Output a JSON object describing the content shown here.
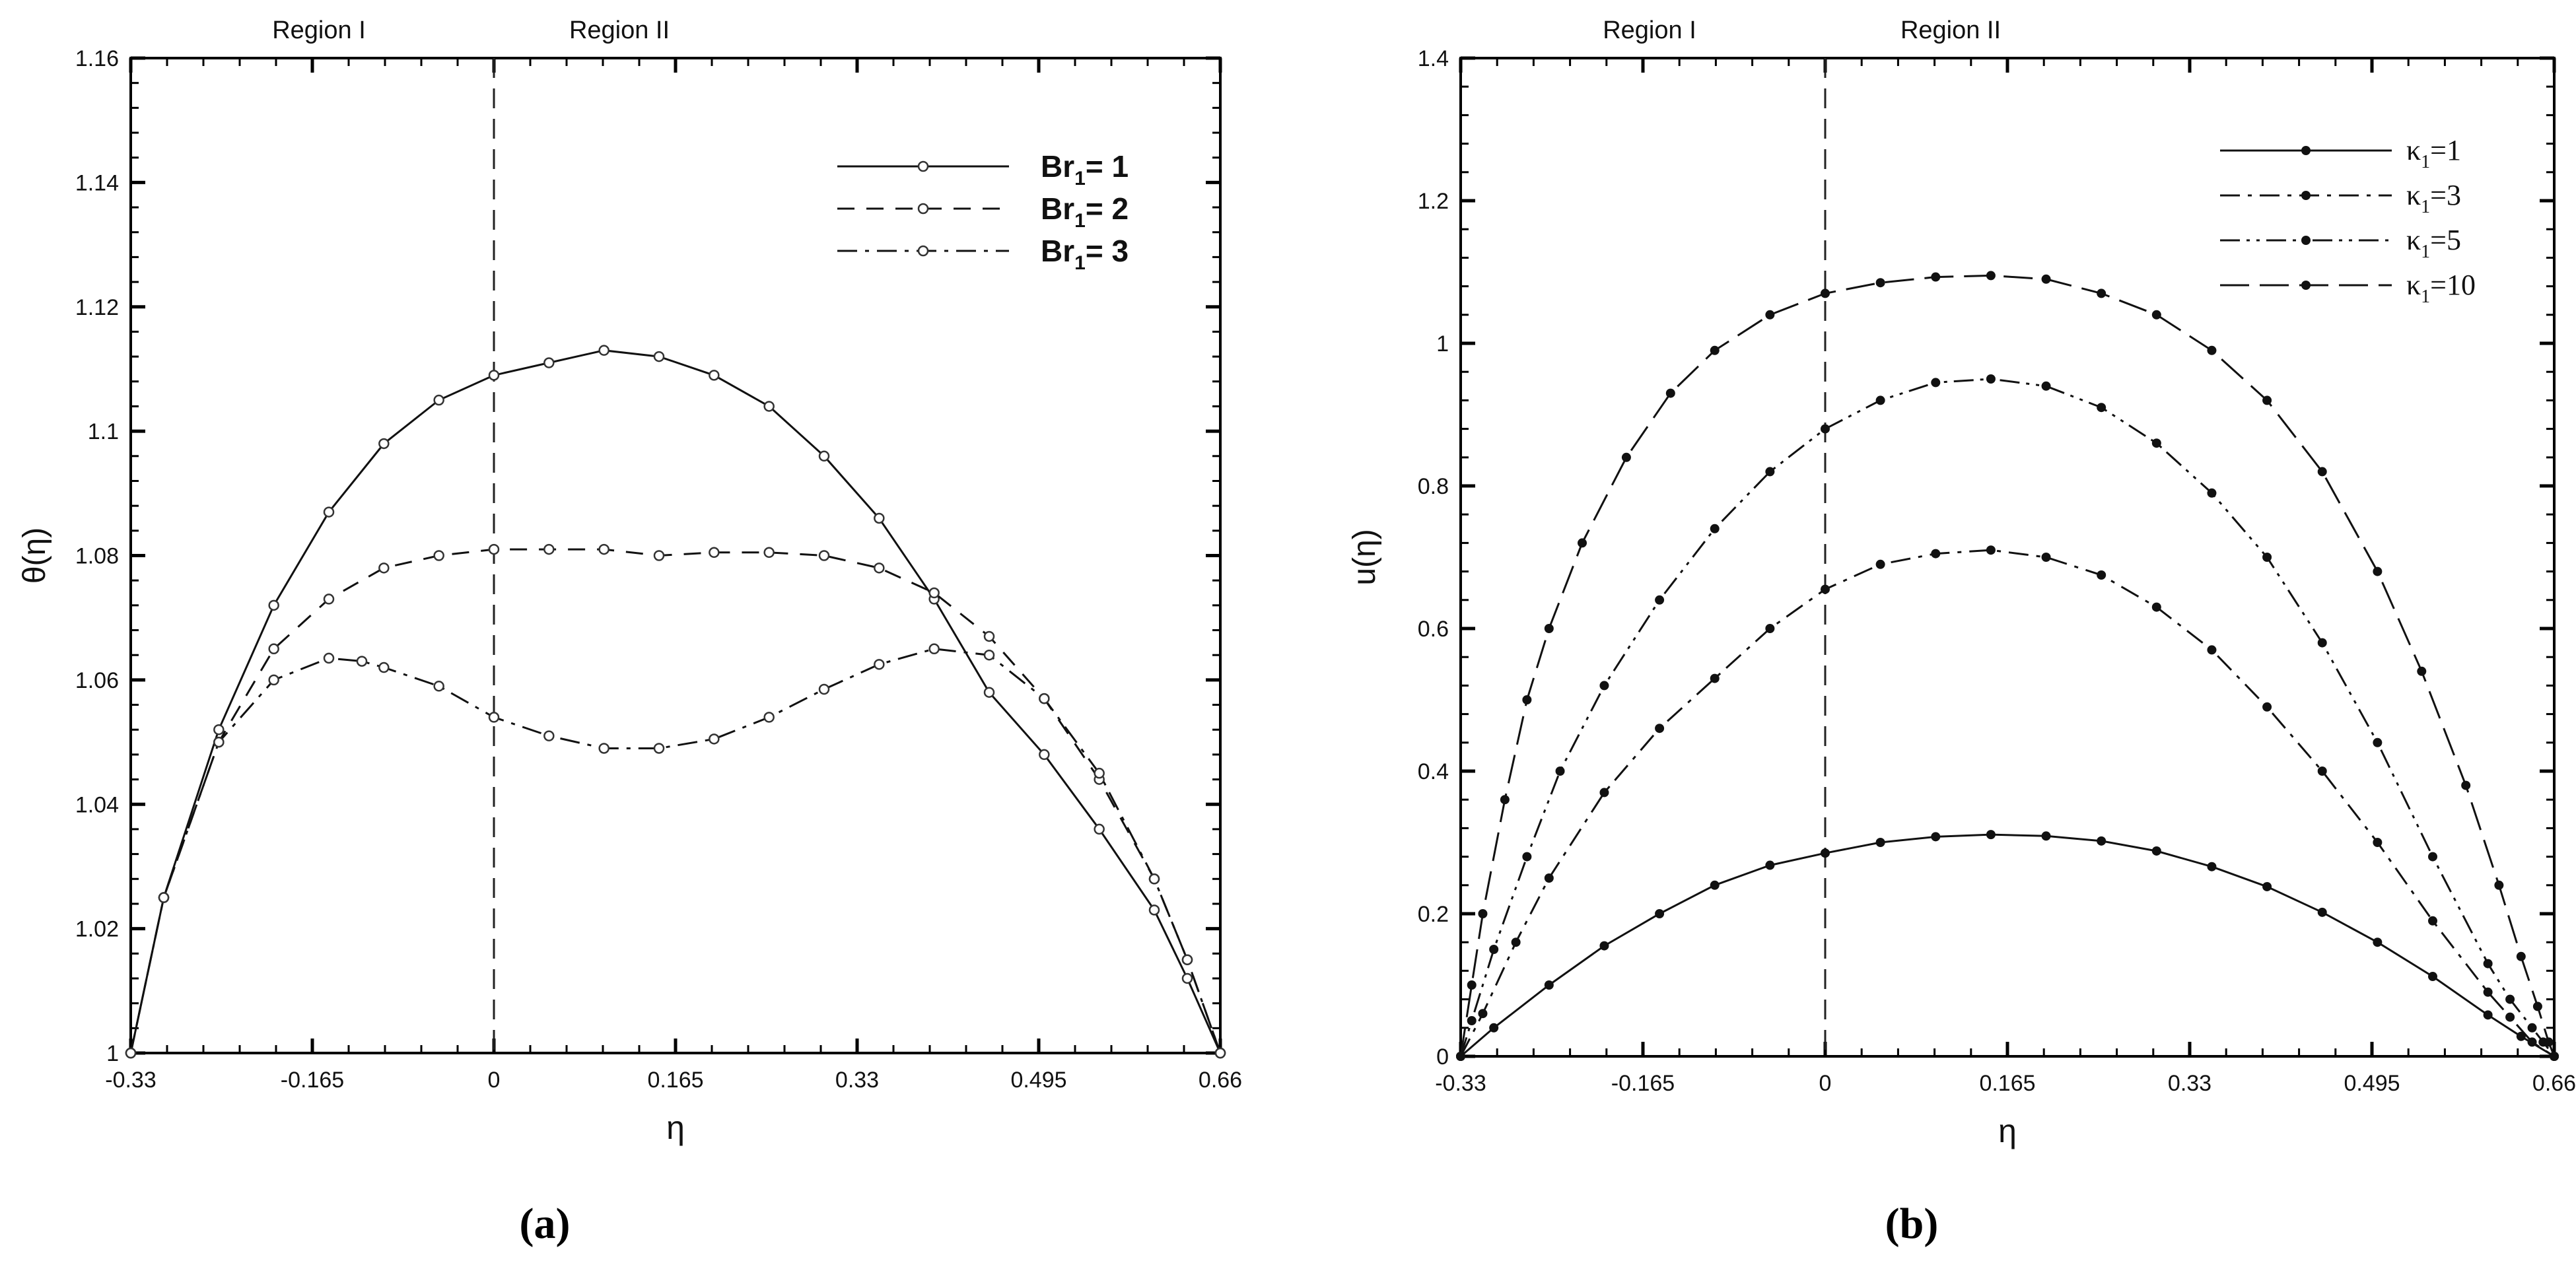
{
  "chart_data": [
    {
      "type": "line",
      "panel_label": "(a)",
      "xlabel": "η",
      "ylabel": "θ(η)",
      "xlim": [
        -0.33,
        0.66
      ],
      "ylim": [
        1.0,
        1.16
      ],
      "xticks": [
        -0.33,
        -0.165,
        0,
        0.165,
        0.33,
        0.495,
        0.66
      ],
      "xtick_labels": [
        "-0.33",
        "-0.165",
        "0",
        "0.165",
        "0.33",
        "0.495",
        "0.66"
      ],
      "yticks": [
        1.0,
        1.02,
        1.04,
        1.06,
        1.08,
        1.1,
        1.12,
        1.14,
        1.16
      ],
      "ytick_labels": [
        "1",
        "1.02",
        "1.04",
        "1.06",
        "1.08",
        "1.1",
        "1.12",
        "1.14",
        "1.16"
      ],
      "regions": [
        "Region I",
        "Region II"
      ],
      "interface_x": 0,
      "marker": "open-circle",
      "legend_position": "top-right",
      "series": [
        {
          "name": "Br",
          "subscript": "1",
          "suffix": "= 1",
          "dash": "solid",
          "x": [
            -0.33,
            -0.3,
            -0.25,
            -0.2,
            -0.15,
            -0.1,
            -0.05,
            0,
            0.05,
            0.1,
            0.15,
            0.2,
            0.25,
            0.3,
            0.35,
            0.4,
            0.45,
            0.5,
            0.55,
            0.6,
            0.63,
            0.66
          ],
          "y": [
            1.0,
            1.025,
            1.052,
            1.072,
            1.087,
            1.098,
            1.105,
            1.109,
            1.111,
            1.113,
            1.112,
            1.109,
            1.104,
            1.096,
            1.086,
            1.073,
            1.058,
            1.048,
            1.036,
            1.023,
            1.012,
            1.0
          ]
        },
        {
          "name": "Br",
          "subscript": "1",
          "suffix": "= 2",
          "dash": "dash",
          "x": [
            -0.33,
            -0.3,
            -0.25,
            -0.2,
            -0.15,
            -0.1,
            -0.05,
            0,
            0.05,
            0.1,
            0.15,
            0.2,
            0.25,
            0.3,
            0.35,
            0.4,
            0.45,
            0.5,
            0.55,
            0.6,
            0.63,
            0.66
          ],
          "y": [
            1.0,
            1.025,
            1.05,
            1.065,
            1.073,
            1.078,
            1.08,
            1.081,
            1.081,
            1.081,
            1.08,
            1.0805,
            1.0805,
            1.08,
            1.078,
            1.074,
            1.067,
            1.057,
            1.044,
            1.028,
            1.015,
            1.0
          ]
        },
        {
          "name": "Br",
          "subscript": "1",
          "suffix": "= 3",
          "dash": "dashdot",
          "x": [
            -0.33,
            -0.3,
            -0.25,
            -0.2,
            -0.15,
            -0.12,
            -0.1,
            -0.05,
            0,
            0.05,
            0.1,
            0.15,
            0.2,
            0.25,
            0.3,
            0.35,
            0.4,
            0.45,
            0.5,
            0.55,
            0.6,
            0.63,
            0.66
          ],
          "y": [
            1.0,
            1.025,
            1.05,
            1.06,
            1.0635,
            1.063,
            1.062,
            1.059,
            1.054,
            1.051,
            1.049,
            1.049,
            1.0505,
            1.054,
            1.0585,
            1.0625,
            1.065,
            1.064,
            1.057,
            1.045,
            1.028,
            1.015,
            1.0
          ]
        }
      ]
    },
    {
      "type": "line",
      "panel_label": "(b)",
      "xlabel": "η",
      "ylabel": "u(η)",
      "xlim": [
        -0.33,
        0.66
      ],
      "ylim": [
        0,
        1.4
      ],
      "xticks": [
        -0.33,
        -0.165,
        0,
        0.165,
        0.33,
        0.495,
        0.66
      ],
      "xtick_labels": [
        "-0.33",
        "-0.165",
        "0",
        "0.165",
        "0.33",
        "0.495",
        "0.66"
      ],
      "yticks": [
        0,
        0.2,
        0.4,
        0.6,
        0.8,
        1.0,
        1.2,
        1.4
      ],
      "ytick_labels": [
        "0",
        "0.2",
        "0.4",
        "0.6",
        "0.8",
        "1",
        "1.2",
        "1.4"
      ],
      "regions": [
        "Region I",
        "Region II"
      ],
      "interface_x": 0,
      "marker": "filled-dot",
      "legend_position": "top-right",
      "series": [
        {
          "name": "κ",
          "subscript": "1",
          "suffix": "=1",
          "dash": "solid",
          "x": [
            -0.33,
            -0.3,
            -0.25,
            -0.2,
            -0.15,
            -0.1,
            -0.05,
            0,
            0.05,
            0.1,
            0.15,
            0.2,
            0.25,
            0.3,
            0.35,
            0.4,
            0.45,
            0.5,
            0.55,
            0.6,
            0.63,
            0.66
          ],
          "y": [
            0.0,
            0.04,
            0.1,
            0.155,
            0.2,
            0.24,
            0.268,
            0.285,
            0.3,
            0.308,
            0.311,
            0.309,
            0.302,
            0.288,
            0.266,
            0.238,
            0.202,
            0.16,
            0.112,
            0.058,
            0.028,
            0.0
          ]
        },
        {
          "name": "κ",
          "subscript": "1",
          "suffix": "=3",
          "dash": "dashdot",
          "x": [
            -0.33,
            -0.31,
            -0.28,
            -0.25,
            -0.2,
            -0.15,
            -0.1,
            -0.05,
            0,
            0.05,
            0.1,
            0.15,
            0.2,
            0.25,
            0.3,
            0.35,
            0.4,
            0.45,
            0.5,
            0.55,
            0.6,
            0.62,
            0.64,
            0.66
          ],
          "y": [
            0.0,
            0.06,
            0.16,
            0.25,
            0.37,
            0.46,
            0.53,
            0.6,
            0.655,
            0.69,
            0.705,
            0.71,
            0.7,
            0.675,
            0.63,
            0.57,
            0.49,
            0.4,
            0.3,
            0.19,
            0.09,
            0.055,
            0.02,
            0.0
          ]
        },
        {
          "name": "κ",
          "subscript": "1",
          "suffix": "=5",
          "dash": "dashdotdot",
          "x": [
            -0.33,
            -0.32,
            -0.3,
            -0.27,
            -0.24,
            -0.2,
            -0.15,
            -0.1,
            -0.05,
            0,
            0.05,
            0.1,
            0.15,
            0.2,
            0.25,
            0.3,
            0.35,
            0.4,
            0.45,
            0.5,
            0.55,
            0.6,
            0.62,
            0.64,
            0.65,
            0.66
          ],
          "y": [
            0.0,
            0.05,
            0.15,
            0.28,
            0.4,
            0.52,
            0.64,
            0.74,
            0.82,
            0.88,
            0.92,
            0.945,
            0.95,
            0.94,
            0.91,
            0.86,
            0.79,
            0.7,
            0.58,
            0.44,
            0.28,
            0.13,
            0.08,
            0.04,
            0.02,
            0.0
          ]
        },
        {
          "name": "κ",
          "subscript": "1",
          "suffix": "=10",
          "dash": "longdash",
          "x": [
            -0.33,
            -0.32,
            -0.31,
            -0.29,
            -0.27,
            -0.25,
            -0.22,
            -0.18,
            -0.14,
            -0.1,
            -0.05,
            0,
            0.05,
            0.1,
            0.15,
            0.2,
            0.25,
            0.3,
            0.35,
            0.4,
            0.45,
            0.5,
            0.54,
            0.58,
            0.61,
            0.63,
            0.645,
            0.655,
            0.66
          ],
          "y": [
            0.0,
            0.1,
            0.2,
            0.36,
            0.5,
            0.6,
            0.72,
            0.84,
            0.93,
            0.99,
            1.04,
            1.07,
            1.085,
            1.093,
            1.095,
            1.09,
            1.07,
            1.04,
            0.99,
            0.92,
            0.82,
            0.68,
            0.54,
            0.38,
            0.24,
            0.14,
            0.07,
            0.02,
            0.0
          ]
        }
      ]
    }
  ]
}
